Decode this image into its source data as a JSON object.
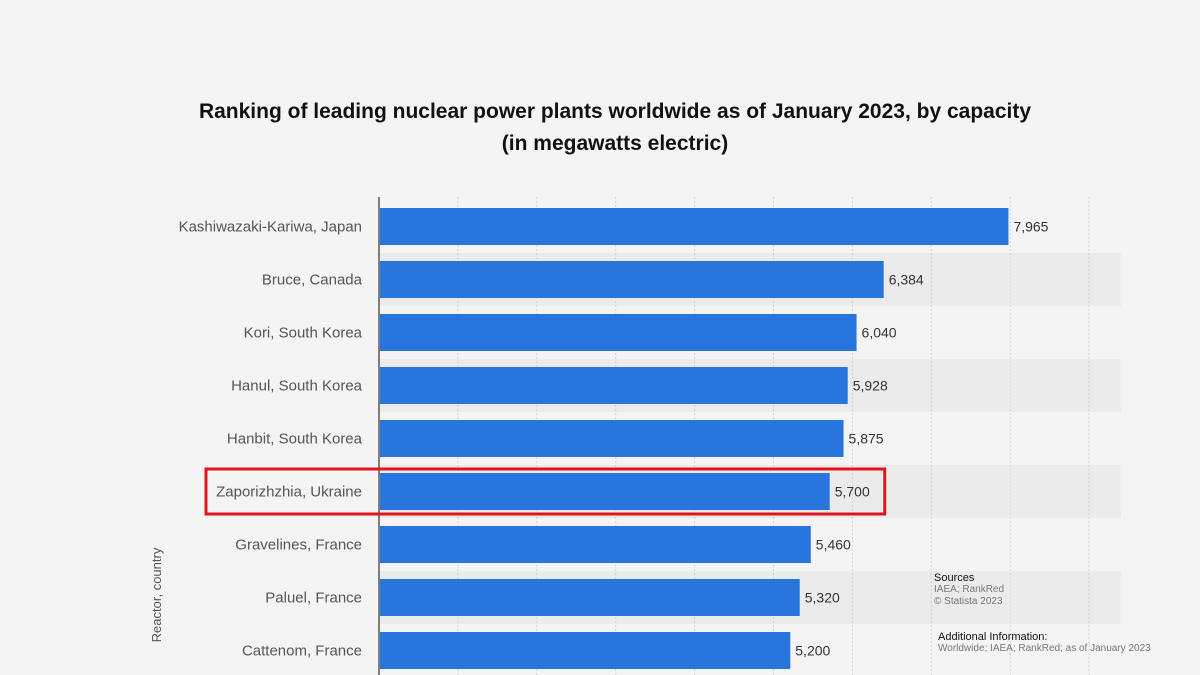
{
  "chart_data": {
    "type": "bar",
    "orientation": "horizontal",
    "title": "Ranking of leading nuclear power plants worldwide as of January 2023, by capacity",
    "subtitle": "(in megawatts electric)",
    "xlabel": "",
    "ylabel": "Reactor, country",
    "xlim": [
      0,
      9000
    ],
    "grid": true,
    "categories": [
      "Kashiwazaki-Kariwa, Japan",
      "Bruce, Canada",
      "Kori, South Korea",
      "Hanul, South Korea",
      "Hanbit, South Korea",
      "Zaporizhzhia, Ukraine",
      "Gravelines, France",
      "Paluel, France",
      "Cattenom, France"
    ],
    "values": [
      7965,
      6384,
      6040,
      5928,
      5875,
      5700,
      5460,
      5320,
      5200
    ],
    "value_labels": [
      "7,965",
      "6,384",
      "6,040",
      "5,928",
      "5,875",
      "5,700",
      "5,460",
      "5,320",
      "5,200"
    ],
    "highlighted_category": "Zaporizhzhia, Ukraine",
    "bar_color": "#2876dd",
    "highlight_color": "#e0161e"
  },
  "sources": {
    "heading": "Sources",
    "lines": [
      "IAEA; RankRed",
      "© Statista 2023"
    ]
  },
  "additional_info": {
    "heading": "Additional Information:",
    "lines": [
      "Worldwide; IAEA; RankRed; as of January 2023"
    ]
  }
}
